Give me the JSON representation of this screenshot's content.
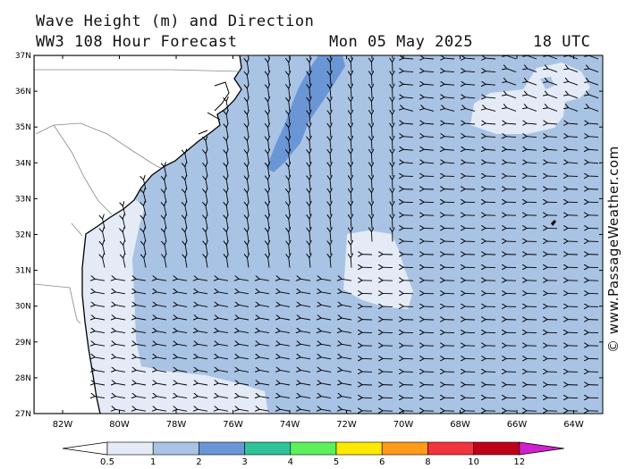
{
  "header": {
    "title": "Wave Height (m) and Direction",
    "model": "WW3 108 Hour Forecast",
    "date": "Mon 05 May 2025",
    "time": "18 UTC"
  },
  "credit": "© www.PassageWeather.com",
  "map": {
    "lat_labels": [
      "37N",
      "36N",
      "35N",
      "34N",
      "33N",
      "32N",
      "31N",
      "30N",
      "29N",
      "28N",
      "27N"
    ],
    "lon_labels": [
      "82W",
      "80W",
      "78W",
      "76W",
      "74W",
      "72W",
      "70W",
      "68W",
      "66W",
      "64W"
    ]
  },
  "colorbar": {
    "labels": [
      "0.5",
      "1",
      "2",
      "3",
      "4",
      "5",
      "6",
      "8",
      "10",
      "12"
    ],
    "colors": [
      "#e4ebf6",
      "#a9c3e4",
      "#6b96d6",
      "#2fc39a",
      "#5cf05a",
      "#ffe800",
      "#ff9a1a",
      "#f2343c",
      "#c0001a",
      "#d020d0"
    ],
    "under_color": "#ffffff"
  },
  "colors": {
    "land": "#ffffff",
    "sea_low": "#e4ebf6",
    "sea_mid": "#a9c3e4",
    "sea_high": "#6b96d6",
    "border": "#000000"
  }
}
